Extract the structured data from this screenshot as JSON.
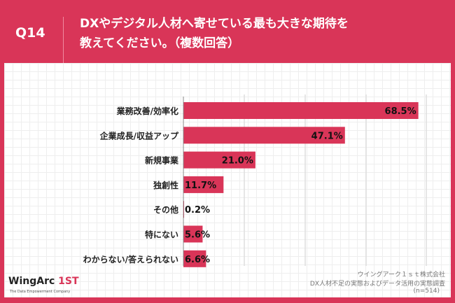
{
  "header": {
    "question": "Q14",
    "title_line1": "DXやデジタル人材へ寄せている最も大きな期待を",
    "title_line2": "教えてください。（複数回答）"
  },
  "chart_data": {
    "type": "bar",
    "orientation": "horizontal",
    "categories": [
      "業務改善/効率化",
      "企業成長/収益アップ",
      "新規事業",
      "独創性",
      "その他",
      "特にない",
      "わからない/答えられない"
    ],
    "values": [
      68.5,
      47.1,
      21.0,
      11.7,
      0.2,
      5.6,
      6.6
    ],
    "value_labels": [
      "68.5%",
      "47.1%",
      "21.0%",
      "11.7%",
      "0.2%",
      "5.6%",
      "6.6%"
    ],
    "unit": "%",
    "xlim": [
      0,
      70
    ],
    "bar_color": "#d93558"
  },
  "footer": {
    "company": "ウイングアーク１ｓｔ株式会社",
    "survey": "DX人材不足の実態およびデータ活用の実態調査",
    "n": "(n=514)"
  },
  "logo": {
    "name": "WingArc",
    "mark": "1ST",
    "tagline": "The Data Empowerment Company"
  }
}
